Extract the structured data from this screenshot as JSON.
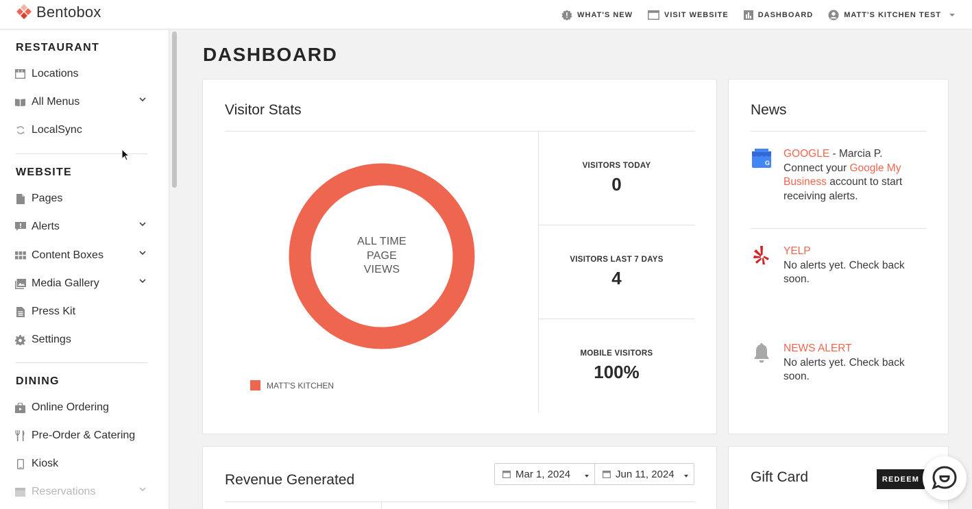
{
  "app": {
    "brand": "Bentobox",
    "accent_color": "#ef6650"
  },
  "topnav": {
    "items": [
      {
        "label": "WHAT'S NEW",
        "icon": "badge-alert-icon"
      },
      {
        "label": "VISIT WEBSITE",
        "icon": "browser-window-icon"
      },
      {
        "label": "DASHBOARD",
        "icon": "bar-chart-icon"
      },
      {
        "label": "MATT'S KITCHEN TEST",
        "icon": "user-avatar-icon"
      }
    ]
  },
  "sidebar": {
    "sections": [
      {
        "title": "RESTAURANT",
        "items": [
          {
            "label": "Locations",
            "icon": "storefront-icon"
          },
          {
            "label": "All Menus",
            "icon": "menu-book-icon",
            "expandable": true
          },
          {
            "label": "LocalSync",
            "icon": "sync-icon"
          }
        ]
      },
      {
        "title": "WEBSITE",
        "items": [
          {
            "label": "Pages",
            "icon": "page-icon"
          },
          {
            "label": "Alerts",
            "icon": "alert-icon",
            "expandable": true
          },
          {
            "label": "Content Boxes",
            "icon": "grid-icon",
            "expandable": true
          },
          {
            "label": "Media Gallery",
            "icon": "image-icon",
            "expandable": true
          },
          {
            "label": "Press Kit",
            "icon": "document-icon"
          },
          {
            "label": "Settings",
            "icon": "gear-icon"
          }
        ]
      },
      {
        "title": "DINING",
        "items": [
          {
            "label": "Online Ordering",
            "icon": "shopping-bag-icon"
          },
          {
            "label": "Pre-Order & Catering",
            "icon": "utensils-icon"
          },
          {
            "label": "Kiosk",
            "icon": "tablet-icon"
          },
          {
            "label": "Reservations",
            "icon": "calendar-icon",
            "expandable": true
          }
        ]
      }
    ]
  },
  "main": {
    "title": "DASHBOARD",
    "visitor_stats": {
      "title": "Visitor Stats",
      "donut_label": [
        "ALL TIME",
        "PAGE",
        "VIEWS"
      ],
      "legend": "MATT'S KITCHEN",
      "stats": [
        {
          "label": "VISITORS TODAY",
          "value": "0"
        },
        {
          "label": "VISITORS LAST 7 DAYS",
          "value": "4"
        },
        {
          "label": "MOBILE VISITORS",
          "value": "100%"
        }
      ]
    },
    "news": {
      "title": "News",
      "items": [
        {
          "source": "GOOGLE",
          "author": " - Marcia P.",
          "text_before": "Connect your ",
          "link": "Google My Business",
          "text_after": " account to start receiving alerts.",
          "icon": "google-my-business-icon"
        },
        {
          "source": "YELP",
          "text": "No alerts yet. Check back soon.",
          "icon": "yelp-icon"
        },
        {
          "source": "NEWS ALERT",
          "text": "No alerts yet. Check back soon.",
          "icon": "bell-icon"
        }
      ]
    },
    "revenue": {
      "title": "Revenue Generated",
      "start_date": "Mar 1, 2024",
      "end_date": "Jun 11, 2024"
    },
    "gift_card": {
      "title": "Gift Card",
      "redeem_label": "REDEEM"
    }
  }
}
